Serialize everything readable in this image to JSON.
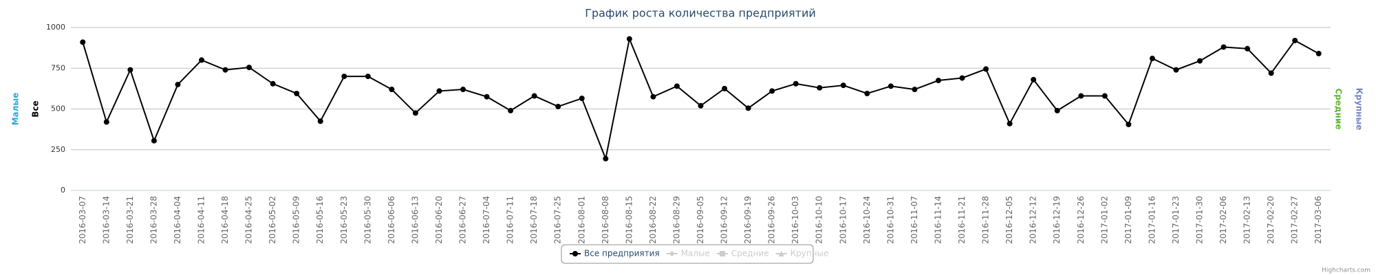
{
  "chart_data": {
    "type": "line",
    "title": "График роста количества предприятий",
    "categories": [
      "2016-03-07",
      "2016-03-14",
      "2016-03-21",
      "2016-03-28",
      "2016-04-04",
      "2016-04-11",
      "2016-04-18",
      "2016-04-25",
      "2016-05-02",
      "2016-05-09",
      "2016-05-16",
      "2016-05-23",
      "2016-05-30",
      "2016-06-06",
      "2016-06-13",
      "2016-06-20",
      "2016-06-27",
      "2016-07-04",
      "2016-07-11",
      "2016-07-18",
      "2016-07-25",
      "2016-08-01",
      "2016-08-08",
      "2016-08-15",
      "2016-08-22",
      "2016-08-29",
      "2016-09-05",
      "2016-09-12",
      "2016-09-19",
      "2016-09-26",
      "2016-10-03",
      "2016-10-10",
      "2016-10-17",
      "2016-10-24",
      "2016-10-31",
      "2016-11-07",
      "2016-11-14",
      "2016-11-21",
      "2016-11-28",
      "2016-12-05",
      "2016-12-12",
      "2016-12-19",
      "2016-12-26",
      "2017-01-02",
      "2017-01-09",
      "2017-01-16",
      "2017-01-23",
      "2017-01-30",
      "2017-02-06",
      "2017-02-13",
      "2017-02-20",
      "2017-02-27",
      "2017-03-06"
    ],
    "series": [
      {
        "name": "Все предприятия",
        "color": "#000000",
        "values": [
          910,
          420,
          740,
          305,
          650,
          800,
          740,
          755,
          655,
          595,
          425,
          700,
          700,
          620,
          475,
          610,
          620,
          575,
          490,
          580,
          515,
          565,
          195,
          930,
          575,
          640,
          520,
          625,
          505,
          610,
          655,
          630,
          645,
          595,
          640,
          620,
          675,
          690,
          745,
          410,
          680,
          490,
          580,
          580,
          405,
          810,
          740,
          795,
          880,
          870,
          720,
          920,
          840
        ]
      }
    ],
    "hidden_series": [
      "Малые",
      "Средние",
      "Крупные"
    ],
    "y_axis_titles": [
      {
        "text": "Малые",
        "color": "#29a9d6",
        "side": "left"
      },
      {
        "text": "Все",
        "color": "#000000",
        "side": "left"
      },
      {
        "text": "Средние",
        "color": "#5cb82e",
        "side": "right"
      },
      {
        "text": "Крупные",
        "color": "#7585c9",
        "side": "right"
      }
    ],
    "ylim": [
      0,
      1000
    ],
    "yticks": [
      0,
      250,
      500,
      750,
      1000
    ],
    "grid": true,
    "credits": "Highcharts.com"
  }
}
